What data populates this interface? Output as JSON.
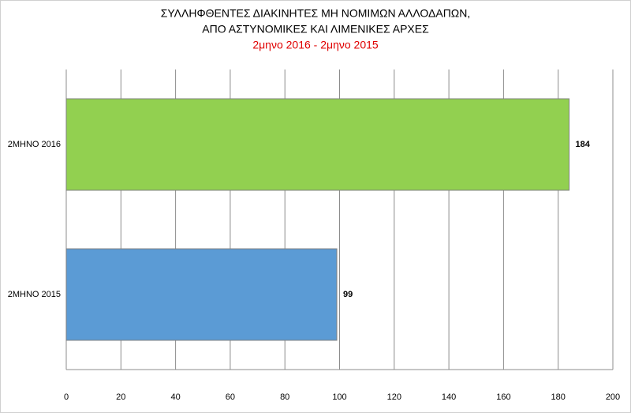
{
  "chart_data": {
    "type": "hbar",
    "title": [
      "ΣΥΛΛΗΦΘΕΝΤΕΣ ΔΙΑΚΙΝΗΤΕΣ ΜΗ ΝΟΜΙΜΩΝ ΑΛΛΟΔΑΠΩΝ,",
      "ΑΠΟ ΑΣΤΥΝΟΜΙΚΕΣ ΚΑΙ ΛΙΜΕΝΙΚΕΣ ΑΡΧΕΣ"
    ],
    "subtitle": "2μηνο 2016 - 2μηνο 2015",
    "categories": [
      "2ΜΗΝΟ 2016",
      "2ΜΗΝΟ 2015"
    ],
    "values": [
      184,
      99
    ],
    "colors": [
      "#92d050",
      "#5b9bd5"
    ],
    "xlim": [
      0,
      200
    ],
    "xticks": [
      0,
      20,
      40,
      60,
      80,
      100,
      120,
      140,
      160,
      180,
      200
    ],
    "grid": true
  }
}
